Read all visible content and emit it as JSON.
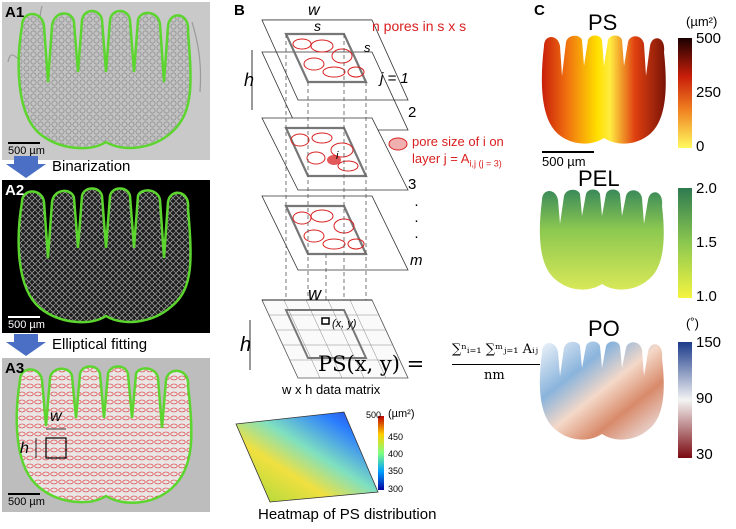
{
  "panel_a": {
    "a1_label": "A1",
    "a2_label": "A2",
    "a3_label": "A3",
    "scalebar": "500 µm",
    "step1": "Binarization",
    "step2": "Elliptical fitting",
    "w_label": "w",
    "h_label": "h"
  },
  "panel_b": {
    "label": "B",
    "w": "w",
    "s1": "s",
    "s2": "s",
    "h": "h",
    "pores_text": "n pores in s x s",
    "j1": "j = 1",
    "l2": "2",
    "l3": "3",
    "lm": "m",
    "dot": "·",
    "pore_size_line1": "pore size of i on",
    "pore_size_line2": "layer j = A",
    "pore_size_sub": "i,j (j = 3)",
    "i_marker": "i",
    "w2": "w",
    "h2": "h",
    "xy": "(x, y)",
    "data_matrix": "w x h data matrix",
    "formula_lhs": "PS(x, y) =",
    "formula_num": "∑ⁿᵢ₌₁ ∑ᵐⱼ₌₁ Aᵢⱼ",
    "formula_den": "nm",
    "heatmap_caption": "Heatmap of PS distribution",
    "heatmap_unit": "(µm²)",
    "heatmap_ticks": [
      "500",
      "450",
      "400",
      "350",
      "300"
    ]
  },
  "panel_c": {
    "label": "C",
    "ps": {
      "title": "PS",
      "unit": "(µm²)",
      "ticks": [
        "500",
        "250",
        "0"
      ],
      "scalebar": "500 µm"
    },
    "pel": {
      "title": "PEL",
      "ticks": [
        "2.0",
        "1.5",
        "1.0"
      ]
    },
    "po": {
      "title": "PO",
      "unit": "(˚)",
      "ticks": [
        "150",
        "90",
        "30"
      ]
    }
  },
  "colors": {
    "outline_green": "#5cd62e",
    "pore_red": "#d92020",
    "arrow_blue": "#4a6fc4",
    "grey_frame": "#777777"
  }
}
